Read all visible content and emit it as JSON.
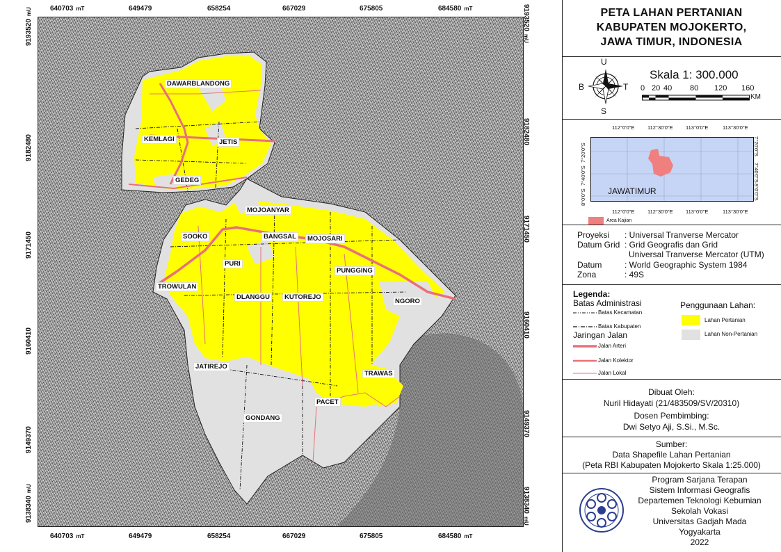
{
  "title": [
    "PETA LAHAN PERTANIAN",
    "KABUPATEN MOJOKERTO,",
    "JAWA TIMUR, INDONESIA"
  ],
  "grid": {
    "x_ticks": [
      "640703",
      "649479",
      "658254",
      "667029",
      "675805",
      "684580"
    ],
    "y_ticks": [
      "9193520",
      "9182480",
      "9171450",
      "9160410",
      "9149370",
      "9138340"
    ],
    "x_unit": "mT",
    "y_unit": "mU"
  },
  "places": [
    "DAWARBLANDONG",
    "KEMLAGI",
    "JETIS",
    "GEDEG",
    "MOJOANYAR",
    "SOOKO",
    "BANGSAL",
    "MOJOSARI",
    "PURI",
    "PUNGGING",
    "TROWULAN",
    "DLANGGU",
    "KUTOREJO",
    "NGORO",
    "JATIREJO",
    "TRAWAS",
    "PACET",
    "GONDANG"
  ],
  "compass": {
    "n": "U",
    "s": "S",
    "w": "B",
    "e": "T"
  },
  "scale": {
    "label": "Skala 1: 300.000",
    "ticks": [
      "0",
      "20",
      "40",
      "80",
      "120",
      "160"
    ],
    "unit": "KM"
  },
  "inset": {
    "top_ticks": [
      "112°0'0\"E",
      "112°30'0\"E",
      "113°0'0\"E",
      "113°30'0\"E"
    ],
    "bottom_ticks": [
      "112°0'0\"E",
      "112°30'0\"E",
      "113°0'0\"E",
      "113°30'0\"E"
    ],
    "side_ticks": [
      "7°20'0\"S",
      "7°40'0\"S",
      "8°0'0\"S"
    ],
    "region_label": "JAWATIMUR",
    "legend_label": "Area Kajian",
    "colors": {
      "sea": "#c6d5f5",
      "study_area": "#f07f7f"
    }
  },
  "projection": [
    {
      "key": "Proyeksi",
      "value": ": Universal Tranverse Mercator"
    },
    {
      "key": "Datum Grid",
      "value": ": Grid Geografis dan Grid"
    },
    {
      "key": "",
      "value": "Universal Tranverse Mercator (UTM)"
    },
    {
      "key": "Datum",
      "value": ": World Geographic System 1984"
    },
    {
      "key": "Zona",
      "value": ": 49S"
    }
  ],
  "legend": {
    "title": "Legenda:",
    "admin_title": "Batas Administrasi",
    "admin": [
      "Batas Kecamatan",
      "Batas Kabupaten"
    ],
    "road_title": "Jaringan Jalan",
    "roads": [
      "Jalan Arteri",
      "Jalan Kolektor",
      "Jalan Lokal"
    ],
    "land_title": "Penggunaan Lahan:",
    "land": [
      "Lahan Pertanian",
      "Lahan Non-Pertanian"
    ],
    "colors": {
      "agri": "#ffff00",
      "non_agri": "#e1e1e1",
      "road": "#e8707a"
    }
  },
  "credits": {
    "made_by_label": "Dibuat Oleh:",
    "made_by": "Nuril Hidayati (21/483509/SV/20310)",
    "advisor_label": "Dosen Pembimbing:",
    "advisor": "Dwi Setyo Aji, S.Si., M.Sc."
  },
  "source": {
    "label": "Sumber:",
    "lines": [
      "Data  Shapefile Lahan Pertanian",
      "(Peta RBI Kabupaten Mojokerto Skala 1:25.000)"
    ]
  },
  "institution": [
    "Program Sarjana Terapan",
    "Sistem Informasi Geografis",
    "Departemen Teknologi Kebumian",
    "Sekolah Vokasi",
    "Universitas Gadjah Mada",
    "Yogyakarta",
    "2022"
  ]
}
